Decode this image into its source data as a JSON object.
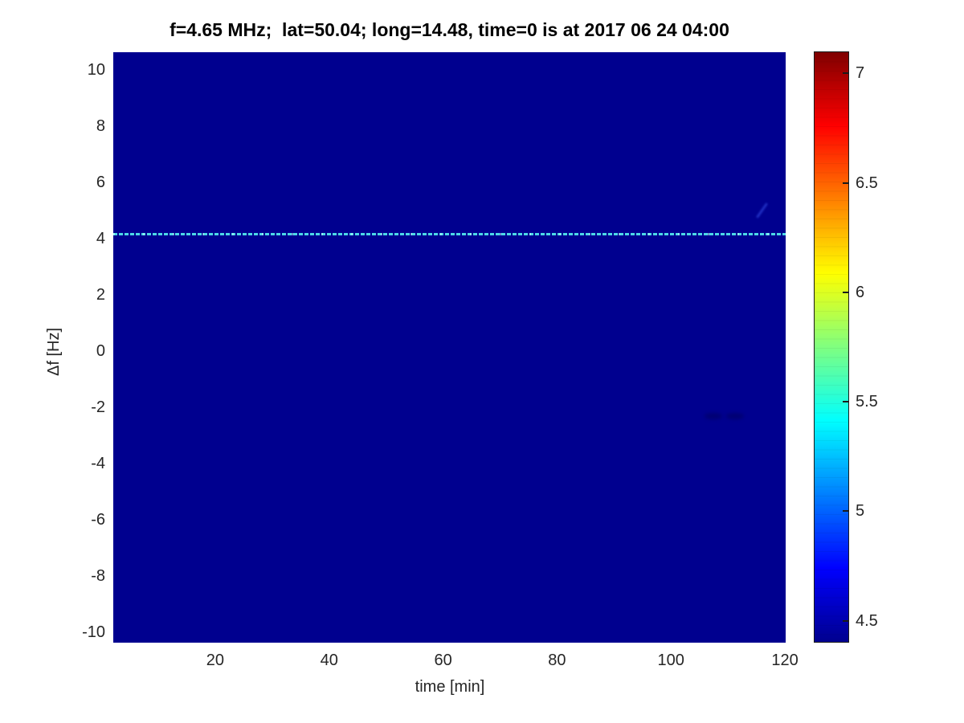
{
  "figure": {
    "background": "#ffffff"
  },
  "chart_data": {
    "type": "heatmap",
    "title": "f=4.65 MHz;  lat=50.04; long=14.48, time=0 is at 2017 06 24 04:00",
    "xlabel": "time [min]",
    "ylabel": "Δf [Hz]",
    "x_ticks": [
      20,
      40,
      60,
      80,
      100,
      120
    ],
    "y_ticks": [
      10,
      8,
      6,
      4,
      2,
      0,
      -2,
      -4,
      -6,
      -8,
      -10
    ],
    "xlim": [
      2.1,
      120.13
    ],
    "ylim": [
      -10.37,
      10.63
    ],
    "grid": false,
    "legend": false,
    "background_color": "#00008f",
    "uniform_background_value": 4.4,
    "colorbar": {
      "position": "right",
      "colormap": "jet",
      "clim": [
        4.4,
        7.1
      ],
      "ticks": [
        7,
        6.5,
        6,
        5.5,
        5,
        4.5
      ]
    },
    "features": [
      {
        "name": "dashed-signal-line",
        "type": "horizontal-dashed-line",
        "delta_f_hz": 4.15,
        "time_span_min": [
          2.1,
          120.13
        ],
        "approx_value": 5.4,
        "color": "#4cd7e6"
      },
      {
        "name": "faint-streak",
        "type": "diagonal-streak",
        "time_min": 116,
        "delta_f_hz": 5.0,
        "color": "#283cd2"
      },
      {
        "name": "faint-smudge-1",
        "type": "smudge",
        "time_min": 107.5,
        "delta_f_hz": -2.3,
        "color": "#00005f"
      },
      {
        "name": "faint-smudge-2",
        "type": "smudge",
        "time_min": 111.3,
        "delta_f_hz": -2.3,
        "color": "#00005f"
      }
    ]
  }
}
